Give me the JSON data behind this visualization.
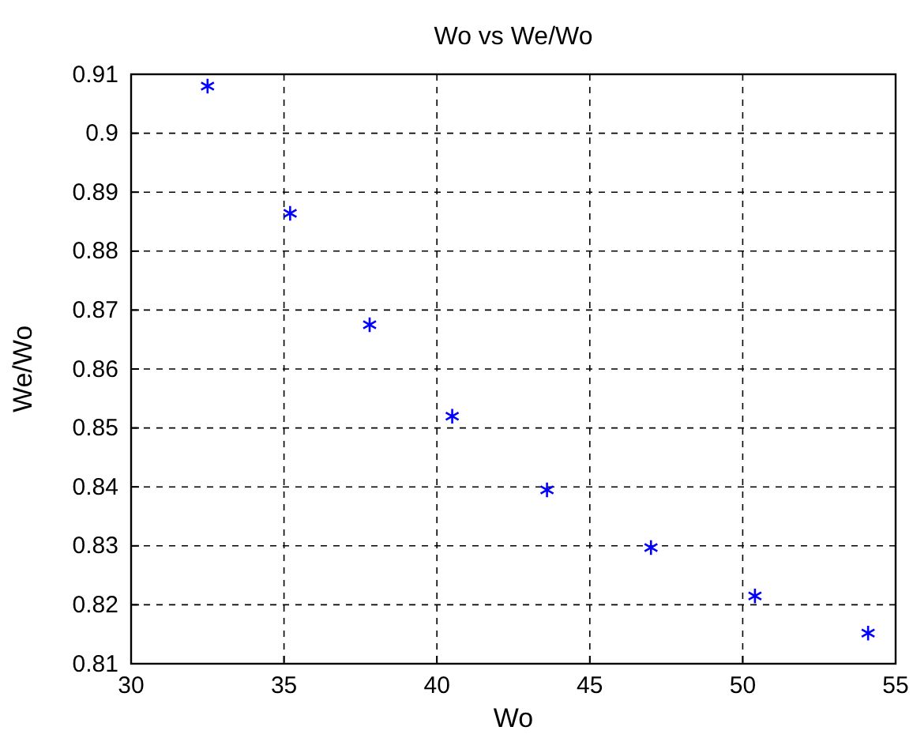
{
  "chart_data": {
    "type": "scatter",
    "title": "Wo vs We/Wo",
    "xlabel": "Wo",
    "ylabel": "We/Wo",
    "x": [
      32.5,
      35.2,
      37.8,
      40.5,
      43.6,
      47.0,
      50.4,
      54.1
    ],
    "series": [
      {
        "color": "#0000ff",
        "values": [
          0.908,
          0.8864,
          0.8675,
          0.852,
          0.8395,
          0.8297,
          0.8215,
          0.8152
        ]
      }
    ],
    "xlim": [
      30,
      55
    ],
    "xticks": [
      30,
      35,
      40,
      45,
      50,
      55
    ],
    "ylim": [
      0.81,
      0.91
    ],
    "yticks": [
      0.81,
      0.82,
      0.83,
      0.84,
      0.85,
      0.86,
      0.87,
      0.88,
      0.89,
      0.9,
      0.91
    ],
    "grid": true,
    "marker": "cross"
  }
}
